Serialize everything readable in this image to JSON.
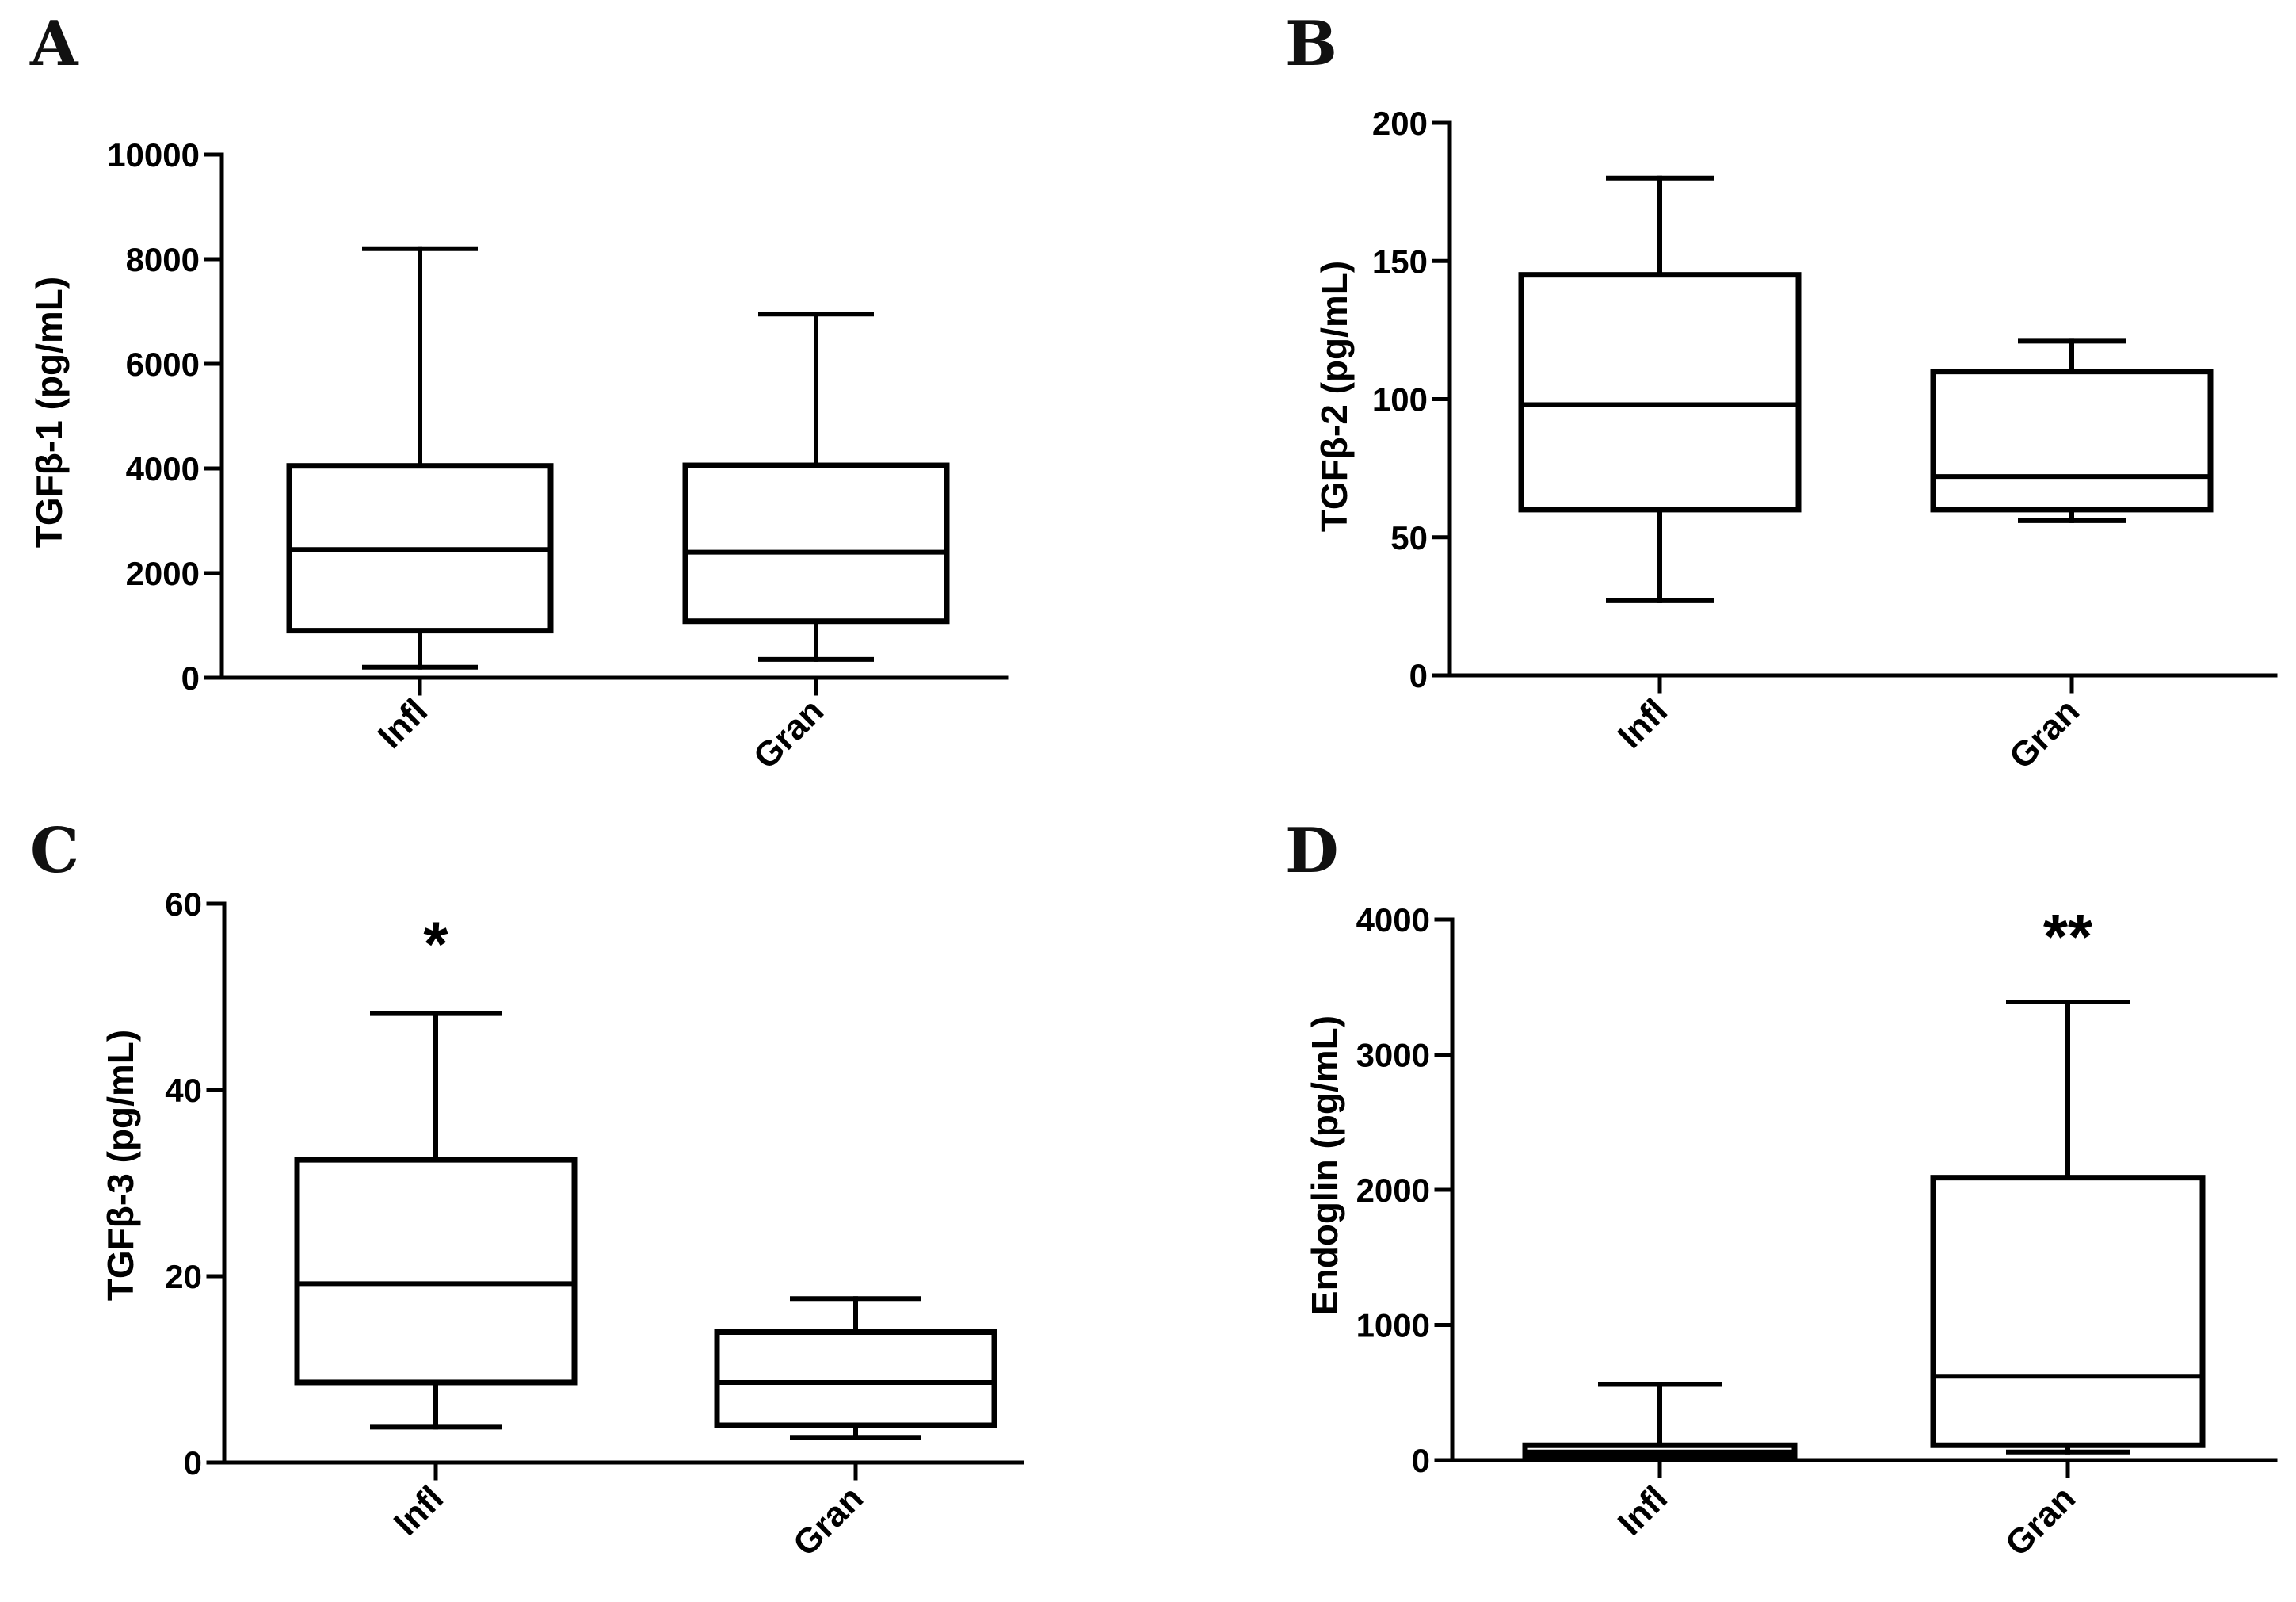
{
  "chart_data": [
    {
      "panel": "A",
      "type": "box",
      "ylabel": "TGFβ-1 (pg/mL)",
      "ylim": [
        0,
        10000
      ],
      "yticks": [
        "0",
        "2000",
        "4000",
        "6000",
        "8000",
        "10000"
      ],
      "categories": [
        "Infl",
        "Gran"
      ],
      "boxes": [
        {
          "name": "Infl",
          "min": 200,
          "q1": 900,
          "median": 2450,
          "q3": 4050,
          "max": 8200
        },
        {
          "name": "Gran",
          "min": 350,
          "q1": 1080,
          "median": 2400,
          "q3": 4060,
          "max": 6950
        }
      ],
      "annotations": []
    },
    {
      "panel": "B",
      "type": "box",
      "ylabel": "TGFβ-2 (pg/mL)",
      "ylim": [
        0,
        200
      ],
      "yticks": [
        "0",
        "50",
        "100",
        "150",
        "200"
      ],
      "categories": [
        "Infl",
        "Gran"
      ],
      "boxes": [
        {
          "name": "Infl",
          "min": 27,
          "q1": 60,
          "median": 98,
          "q3": 145,
          "max": 180
        },
        {
          "name": "Gran",
          "min": 56,
          "q1": 60,
          "median": 72,
          "q3": 110,
          "max": 121
        }
      ],
      "annotations": []
    },
    {
      "panel": "C",
      "type": "box",
      "ylabel": "TGFβ-3 (pg/mL)",
      "ylim": [
        0,
        60
      ],
      "yticks": [
        "0",
        "20",
        "40",
        "60"
      ],
      "categories": [
        "Infl",
        "Gran"
      ],
      "boxes": [
        {
          "name": "Infl",
          "min": 3.8,
          "q1": 8.6,
          "median": 19.2,
          "q3": 32.5,
          "max": 48.2
        },
        {
          "name": "Gran",
          "min": 2.7,
          "q1": 4.0,
          "median": 8.6,
          "q3": 14.0,
          "max": 17.6
        }
      ],
      "annotations": [
        {
          "category": "Infl",
          "text": "*"
        }
      ]
    },
    {
      "panel": "D",
      "type": "box",
      "ylabel": "Endoglin (pg/mL)",
      "ylim": [
        0,
        4000
      ],
      "yticks": [
        "0",
        "1000",
        "2000",
        "3000",
        "4000"
      ],
      "categories": [
        "Infl",
        "Gran"
      ],
      "boxes": [
        {
          "name": "Infl",
          "min": 10,
          "q1": 30,
          "median": 60,
          "q3": 110,
          "max": 560
        },
        {
          "name": "Gran",
          "min": 60,
          "q1": 110,
          "median": 620,
          "q3": 2090,
          "max": 3390
        }
      ],
      "annotations": [
        {
          "category": "Gran",
          "text": "**"
        }
      ]
    }
  ]
}
